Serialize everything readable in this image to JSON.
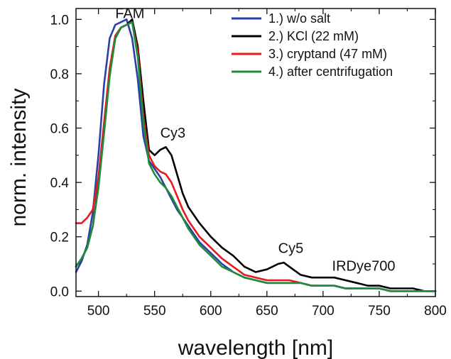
{
  "chart_data": {
    "type": "line",
    "xlabel": "wavelength [nm]",
    "ylabel": "norm. intensity",
    "xlim": [
      480,
      800
    ],
    "ylim": [
      -0.02,
      1.04
    ],
    "x_ticks": [
      "500",
      "550",
      "600",
      "650",
      "700",
      "750",
      "800"
    ],
    "y_ticks": [
      "0.0",
      "0.2",
      "0.4",
      "0.6",
      "0.8",
      "1.0"
    ],
    "legend_position": "top-right",
    "annotations": [
      {
        "text": "FAM",
        "x": 515,
        "y": 1.005
      },
      {
        "text": "Cy3",
        "x": 555,
        "y": 0.565
      },
      {
        "text": "Cy5",
        "x": 660,
        "y": 0.14
      },
      {
        "text": "IRDye700",
        "x": 708,
        "y": 0.075
      }
    ],
    "series": [
      {
        "name": "1.) w/o salt",
        "color": "#2b3fa8",
        "x": [
          480,
          485,
          490,
          495,
          500,
          505,
          510,
          515,
          520,
          525,
          530,
          535,
          540,
          545,
          550,
          555,
          560,
          565,
          570,
          575,
          580,
          590,
          600,
          610,
          620,
          630,
          640,
          650,
          660,
          670,
          680,
          690,
          700,
          710,
          720,
          730,
          740,
          750,
          760,
          770,
          780,
          790,
          800
        ],
        "y": [
          0.07,
          0.11,
          0.17,
          0.29,
          0.5,
          0.76,
          0.93,
          0.98,
          0.99,
          1.0,
          0.93,
          0.78,
          0.57,
          0.48,
          0.45,
          0.42,
          0.38,
          0.34,
          0.3,
          0.27,
          0.24,
          0.18,
          0.14,
          0.1,
          0.07,
          0.05,
          0.04,
          0.03,
          0.03,
          0.03,
          0.03,
          0.02,
          0.02,
          0.02,
          0.01,
          0.01,
          0.01,
          0.01,
          0.0,
          0.0,
          0.0,
          0.0,
          0.0
        ]
      },
      {
        "name": "2.) KCl (22 mM)",
        "color": "#000000",
        "x": [
          480,
          485,
          490,
          495,
          500,
          505,
          510,
          515,
          520,
          525,
          530,
          535,
          540,
          545,
          550,
          555,
          560,
          565,
          570,
          575,
          580,
          590,
          600,
          610,
          620,
          630,
          640,
          650,
          660,
          665,
          670,
          680,
          690,
          700,
          710,
          720,
          730,
          740,
          750,
          760,
          770,
          780,
          790,
          800
        ],
        "y": [
          0.09,
          0.12,
          0.16,
          0.24,
          0.39,
          0.59,
          0.8,
          0.93,
          0.97,
          0.98,
          1.0,
          0.9,
          0.7,
          0.52,
          0.5,
          0.52,
          0.53,
          0.5,
          0.43,
          0.36,
          0.31,
          0.25,
          0.2,
          0.16,
          0.13,
          0.09,
          0.07,
          0.08,
          0.1,
          0.105,
          0.09,
          0.06,
          0.05,
          0.05,
          0.05,
          0.04,
          0.03,
          0.02,
          0.02,
          0.01,
          0.01,
          0.01,
          0.0,
          0.0
        ]
      },
      {
        "name": "3.) cryptand (47 mM)",
        "color": "#e8191f",
        "x": [
          480,
          485,
          490,
          495,
          500,
          505,
          510,
          515,
          520,
          525,
          530,
          535,
          540,
          545,
          550,
          555,
          560,
          565,
          570,
          575,
          580,
          590,
          600,
          610,
          620,
          630,
          640,
          650,
          660,
          670,
          680,
          690,
          700,
          710,
          720,
          730,
          740,
          750,
          760,
          770,
          780,
          790,
          800
        ],
        "y": [
          0.25,
          0.25,
          0.27,
          0.3,
          0.42,
          0.62,
          0.82,
          0.94,
          0.97,
          0.98,
          0.99,
          0.88,
          0.64,
          0.5,
          0.46,
          0.44,
          0.43,
          0.4,
          0.35,
          0.3,
          0.26,
          0.2,
          0.16,
          0.12,
          0.09,
          0.06,
          0.05,
          0.04,
          0.04,
          0.04,
          0.03,
          0.02,
          0.02,
          0.02,
          0.01,
          0.01,
          0.01,
          0.01,
          0.0,
          0.0,
          0.0,
          0.0,
          0.0
        ]
      },
      {
        "name": "4.) after centrifugation",
        "color": "#1e8c3a",
        "x": [
          480,
          485,
          490,
          495,
          500,
          505,
          510,
          515,
          520,
          525,
          530,
          535,
          540,
          545,
          550,
          555,
          560,
          565,
          570,
          575,
          580,
          590,
          600,
          610,
          620,
          630,
          640,
          650,
          660,
          670,
          680,
          690,
          700,
          710,
          720,
          730,
          740,
          750,
          760,
          770,
          780,
          790,
          800
        ],
        "y": [
          0.09,
          0.12,
          0.16,
          0.24,
          0.38,
          0.58,
          0.79,
          0.93,
          0.97,
          0.98,
          0.99,
          0.86,
          0.62,
          0.47,
          0.43,
          0.4,
          0.38,
          0.35,
          0.31,
          0.27,
          0.23,
          0.17,
          0.13,
          0.09,
          0.07,
          0.05,
          0.04,
          0.03,
          0.03,
          0.03,
          0.03,
          0.02,
          0.02,
          0.02,
          0.01,
          0.01,
          0.01,
          0.01,
          0.0,
          0.0,
          0.0,
          0.0,
          0.0
        ]
      }
    ]
  }
}
